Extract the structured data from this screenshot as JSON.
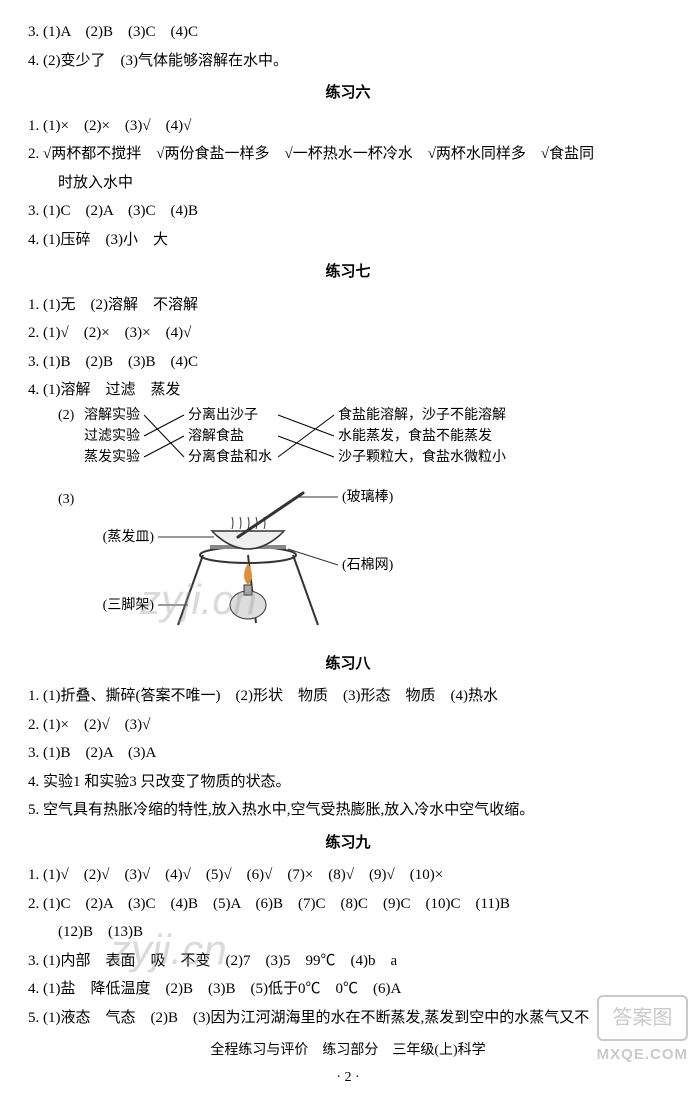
{
  "q3": "3. (1)A　(2)B　(3)C　(4)C",
  "q4": "4. (2)变少了　(3)气体能够溶解在水中。",
  "sec6": {
    "title": "练习六",
    "q1": "1. (1)×　(2)×　(3)√　(4)√",
    "q2a": "2. √两杯都不搅拌　√两份食盐一样多　√一杯热水一杯冷水　√两杯水同样多　√食盐同",
    "q2b": "时放入水中",
    "q3": "3. (1)C　(2)A　(3)C　(4)B",
    "q4": "4. (1)压碎　(3)小　大"
  },
  "sec7": {
    "title": "练习七",
    "q1": "1. (1)无　(2)溶解　不溶解",
    "q2": "2. (1)√　(2)×　(3)×　(4)√",
    "q3": "3. (1)B　(2)B　(3)B　(4)C",
    "q4": "4. (1)溶解　过滤　蒸发",
    "match": {
      "prefix": "(2)",
      "left": [
        "溶解实验",
        "过滤实验",
        "蒸发实验"
      ],
      "mid": [
        "分离出沙子",
        "溶解食盐",
        "分离食盐和水"
      ],
      "right": [
        "食盐能溶解，沙子不能溶解",
        "水能蒸发，食盐不能蒸发",
        "沙子颗粒大，食盐水微粒小"
      ],
      "connections1": [
        [
          0,
          2
        ],
        [
          1,
          0
        ],
        [
          2,
          1
        ]
      ],
      "connections2": [
        [
          0,
          1
        ],
        [
          1,
          2
        ],
        [
          2,
          0
        ]
      ]
    },
    "q4_3": "(3)",
    "apparatus": {
      "labels": {
        "glass_rod": "(玻璃棒)",
        "evaporating_dish": "(蒸发皿)",
        "asbestos_net": "(石棉网)",
        "tripod": "(三脚架)"
      },
      "colors": {
        "line": "#333333",
        "fill": "#666666",
        "flame": "#de8f3e"
      }
    }
  },
  "sec8": {
    "title": "练习八",
    "q1": "1. (1)折叠、撕碎(答案不唯一)　(2)形状　物质　(3)形态　物质　(4)热水",
    "q2": "2. (1)×　(2)√　(3)√",
    "q3": "3. (1)B　(2)A　(3)A",
    "q4": "4. 实验1 和实验3 只改变了物质的状态。",
    "q5": "5. 空气具有热胀冷缩的特性,放入热水中,空气受热膨胀,放入冷水中空气收缩。"
  },
  "sec9": {
    "title": "练习九",
    "q1": "1. (1)√　(2)√　(3)√　(4)√　(5)√　(6)√　(7)×　(8)√　(9)√　(10)×",
    "q2a": "2. (1)C　(2)A　(3)C　(4)B　(5)A　(6)B　(7)C　(8)C　(9)C　(10)C　(11)B",
    "q2b": "(12)B　(13)B",
    "q3": "3. (1)内部　表面　吸　不变　(2)7　(3)5　99℃　(4)b　a",
    "q4": "4. (1)盐　降低温度　(2)B　(3)B　(5)低于0℃　0℃　(6)A",
    "q5": "5. (1)液态　气态　(2)B　(3)因为江河湖海里的水在不断蒸发,蒸发到空中的水蒸气又不"
  },
  "footer": "全程练习与评价　练习部分　三年级(上)科学",
  "pagenum": "· 2 ·",
  "watermarks": {
    "w1": "zyji.cn",
    "w2": "zyji.cn"
  },
  "corner": {
    "line1": "答案图",
    "line2": "MXQE.COM"
  }
}
